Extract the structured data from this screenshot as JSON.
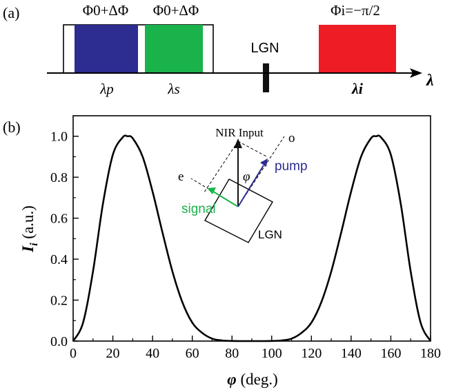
{
  "panel_a": {
    "label": "(a)",
    "box1_label": "Φ0+ΔΦ",
    "box2_label": "Φ0+ΔΦ",
    "box3_label": "Φi=−π/2",
    "lgn_label": "LGN",
    "lambda_p": "λp",
    "lambda_s": "λs",
    "lambda_i": "λi",
    "axis_label": "λ",
    "colors": {
      "pump": "#2c2c91",
      "signal": "#19b24b",
      "idler": "#ee1c25"
    }
  },
  "panel_b": {
    "label": "(b)",
    "inset": {
      "nir_label": "NIR Input",
      "o_label": "o",
      "e_label": "e",
      "phi_label": "φ",
      "pump_label": "pump",
      "signal_label": "signal",
      "lgn_label": "LGN"
    }
  },
  "chart_data": {
    "type": "line",
    "xlabel": "φ (deg.)",
    "ylabel": "Ii (a.u.)",
    "xlim": [
      0,
      180
    ],
    "ylim": [
      0,
      1.1
    ],
    "xticks": [
      "0",
      "20",
      "40",
      "60",
      "80",
      "100",
      "120",
      "140",
      "160",
      "180"
    ],
    "yticks": [
      "0.0",
      "0.2",
      "0.4",
      "0.6",
      "0.8",
      "1.0"
    ],
    "grid": false,
    "series": [
      {
        "x": [
          0,
          5,
          10,
          15,
          20,
          25,
          27.4,
          30,
          35,
          40,
          45,
          50,
          55,
          60,
          65,
          70,
          75,
          80,
          85,
          90,
          95,
          100,
          105,
          110,
          115,
          120,
          125,
          130,
          135,
          140,
          145,
          150,
          152.6,
          155,
          160,
          165,
          170,
          175,
          180
        ],
        "y": [
          0.0,
          0.09,
          0.34,
          0.67,
          0.91,
          0.995,
          1.0,
          0.99,
          0.9,
          0.73,
          0.53,
          0.34,
          0.19,
          0.09,
          0.04,
          0.012,
          0.003,
          0.0005,
          0.0,
          0.0,
          0.0,
          0.0005,
          0.003,
          0.012,
          0.04,
          0.09,
          0.19,
          0.34,
          0.53,
          0.73,
          0.9,
          0.99,
          1.0,
          0.995,
          0.91,
          0.67,
          0.34,
          0.09,
          0.0
        ]
      }
    ]
  }
}
